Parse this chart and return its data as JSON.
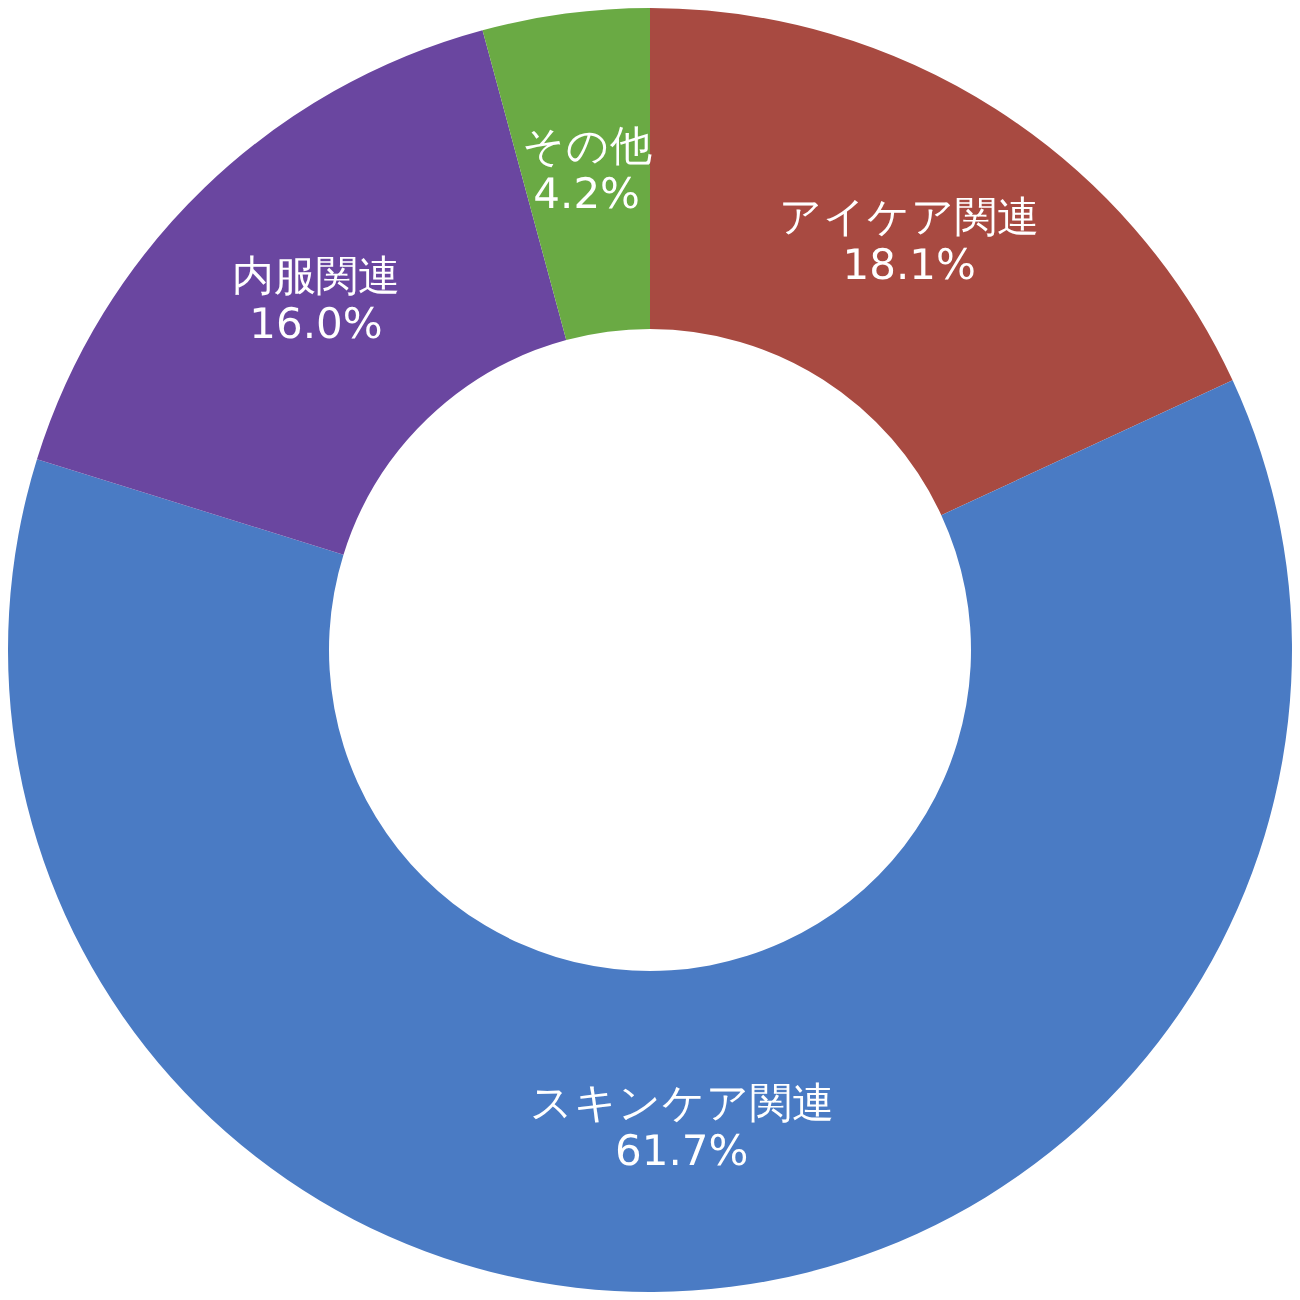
{
  "chart_data": {
    "type": "donut",
    "categories": [
      "アイケア関連",
      "スキンケア関連",
      "内服関連",
      "その他"
    ],
    "values": [
      18.1,
      61.7,
      16.0,
      4.2
    ],
    "colors": [
      "#a84a41",
      "#4a7bc4",
      "#6a46a0",
      "#6aaa44"
    ],
    "value_labels": [
      "18.1%",
      "61.7%",
      "16.0%",
      "4.2%"
    ],
    "legend": false
  }
}
